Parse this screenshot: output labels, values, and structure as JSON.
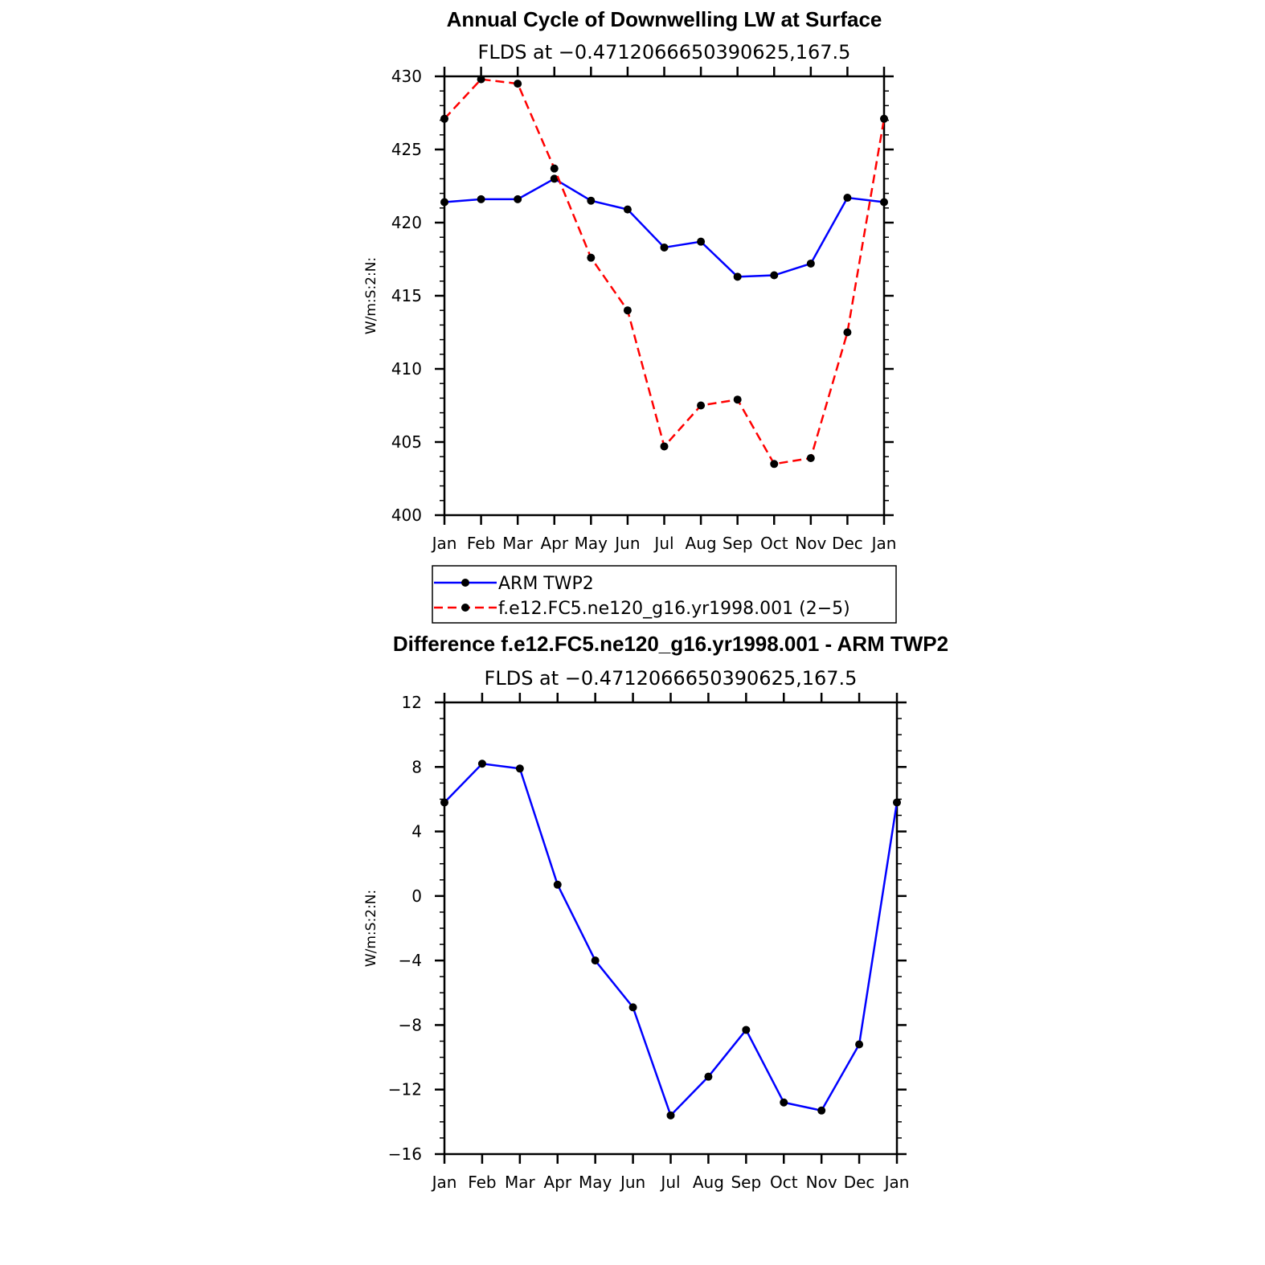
{
  "chart_data": [
    {
      "type": "line",
      "title": "Annual Cycle of Downwelling LW at Surface",
      "subtitle": "FLDS at −0.4712066650390625,167.5",
      "xlabel": "",
      "ylabel": "W/m:S:2:N:",
      "categories": [
        "Jan",
        "Feb",
        "Mar",
        "Apr",
        "May",
        "Jun",
        "Jul",
        "Aug",
        "Sep",
        "Oct",
        "Nov",
        "Dec",
        "Jan"
      ],
      "ylim": [
        400,
        430
      ],
      "yticks": [
        400,
        405,
        410,
        415,
        420,
        425,
        430
      ],
      "ytick_labels": [
        "400",
        "405",
        "410",
        "415",
        "420",
        "425",
        "430"
      ],
      "series": [
        {
          "name": "ARM TWP2",
          "color": "#0000ff",
          "dash": "solid",
          "values": [
            421.4,
            421.6,
            421.6,
            423.0,
            421.5,
            420.9,
            418.3,
            418.7,
            416.3,
            416.4,
            417.2,
            421.7,
            421.4
          ]
        },
        {
          "name": "f.e12.FC5.ne120_g16.yr1998.001 (2−5)",
          "color": "#ff0000",
          "dash": "dashed",
          "values": [
            427.1,
            429.8,
            429.5,
            423.7,
            417.6,
            414.0,
            404.7,
            407.5,
            407.9,
            403.5,
            403.9,
            412.5,
            427.1
          ]
        }
      ],
      "legend": "bottom"
    },
    {
      "type": "line",
      "title": "Difference f.e12.FC5.ne120_g16.yr1998.001 - ARM TWP2",
      "subtitle": "FLDS at −0.4712066650390625,167.5",
      "xlabel": "",
      "ylabel": "W/m:S:2:N:",
      "categories": [
        "Jan",
        "Feb",
        "Mar",
        "Apr",
        "May",
        "Jun",
        "Jul",
        "Aug",
        "Sep",
        "Oct",
        "Nov",
        "Dec",
        "Jan"
      ],
      "ylim": [
        -16,
        12
      ],
      "yticks": [
        -16,
        -12,
        -8,
        -4,
        0,
        4,
        8,
        12
      ],
      "ytick_labels": [
        "−16",
        "−12",
        "−8",
        "−4",
        "0",
        "4",
        "8",
        "12"
      ],
      "series": [
        {
          "name": "Difference",
          "color": "#0000ff",
          "dash": "solid",
          "values": [
            5.8,
            8.2,
            7.9,
            0.7,
            -4.0,
            -6.9,
            -13.6,
            -11.2,
            -8.3,
            -12.8,
            -13.3,
            -9.2,
            5.8
          ]
        }
      ]
    }
  ]
}
